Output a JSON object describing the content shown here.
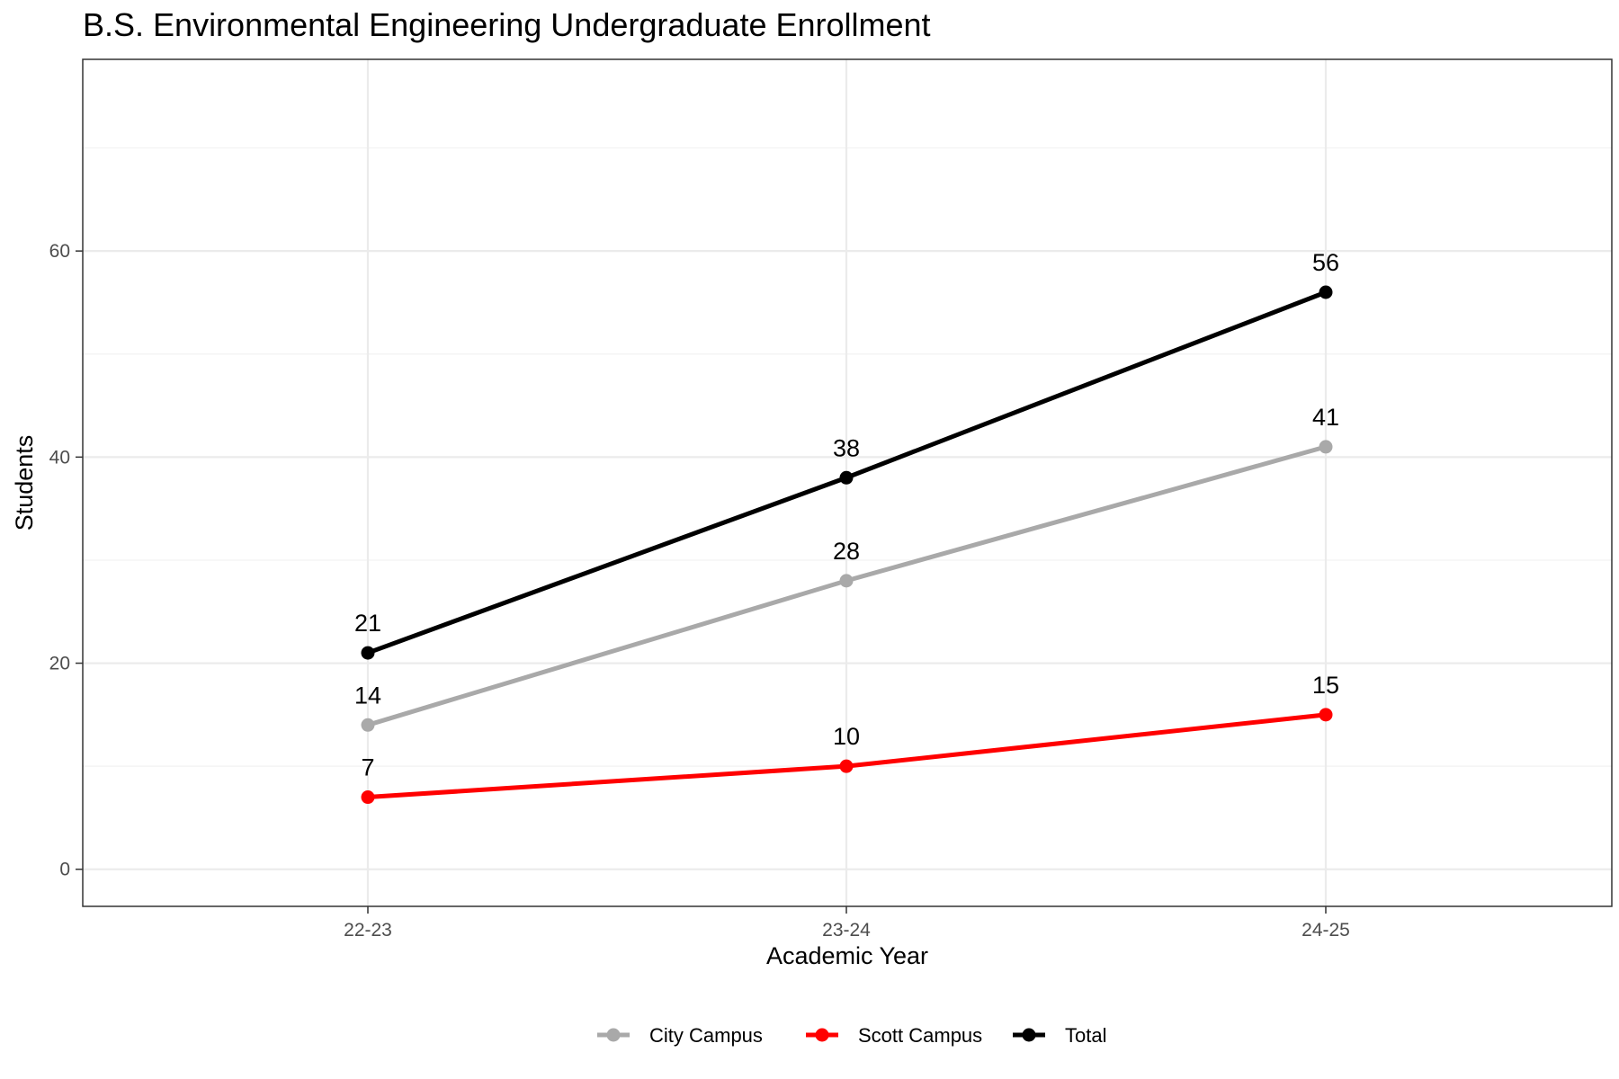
{
  "chart_data": {
    "type": "line",
    "title": "B.S. Environmental Engineering Undergraduate Enrollment",
    "xlabel": "Academic Year",
    "ylabel": "Students",
    "categories": [
      "22-23",
      "23-24",
      "24-25"
    ],
    "ylim": [
      -3.6,
      78.6
    ],
    "y_ticks": [
      0,
      20,
      40,
      60
    ],
    "y_tick_labels": [
      "0",
      "20",
      "40",
      "60"
    ],
    "grid": true,
    "legend_position": "bottom",
    "series": [
      {
        "name": "City Campus",
        "values": [
          14,
          28,
          41
        ],
        "color": "#a9a9a9"
      },
      {
        "name": "Scott Campus",
        "values": [
          7,
          10,
          15
        ],
        "color": "#ff0000"
      },
      {
        "name": "Total",
        "values": [
          21,
          38,
          56
        ],
        "color": "#000000"
      }
    ]
  }
}
